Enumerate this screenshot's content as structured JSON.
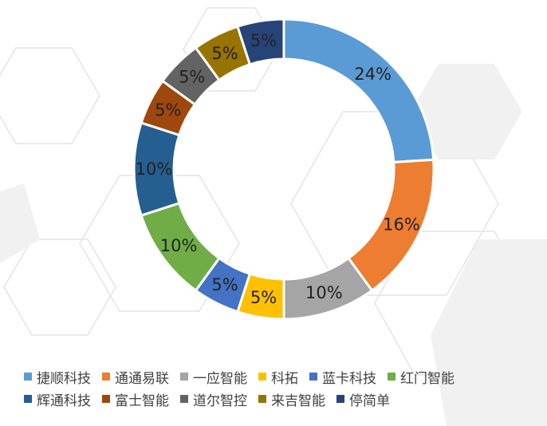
{
  "chart_data": {
    "type": "pie",
    "donut": true,
    "title": "",
    "legend_position": "bottom",
    "categories": [
      "捷顺科技",
      "通通易联",
      "一应智能",
      "科拓",
      "蓝卡科技",
      "红门智能",
      "辉通科技",
      "富士智能",
      "道尔智控",
      "来吉智能",
      "停简单"
    ],
    "values": [
      24,
      16,
      10,
      5,
      5,
      10,
      10,
      5,
      5,
      5,
      5
    ],
    "labels": [
      "24%",
      "16%",
      "10%",
      "5%",
      "5%",
      "10%",
      "10%",
      "5%",
      "5%",
      "5%",
      "5%"
    ],
    "colors": [
      "#5B9BD5",
      "#ED7D31",
      "#A5A5A5",
      "#FFC000",
      "#4472C4",
      "#70AD47",
      "#255E91",
      "#9E480E",
      "#636363",
      "#997300",
      "#264478"
    ]
  }
}
